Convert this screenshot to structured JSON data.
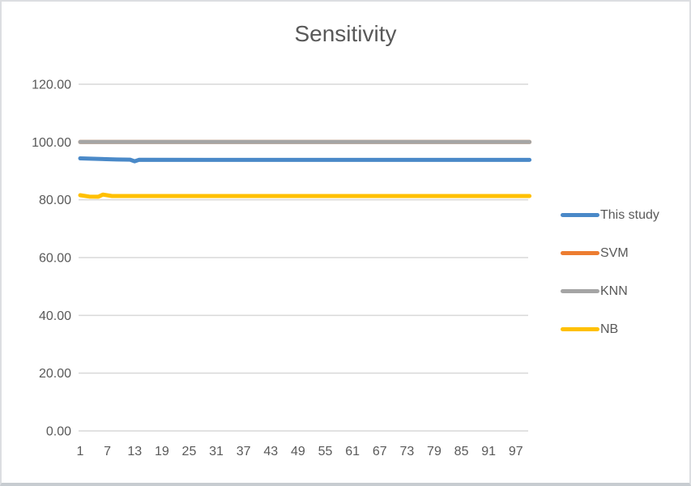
{
  "frame": {
    "background": "#ffffff",
    "border_color": "#dcdee1",
    "border_bottom_color": "#c7ccd1"
  },
  "chart_data": {
    "type": "line",
    "title": "Sensitivity",
    "styles": {
      "title_color": "#595959",
      "axis_label_color": "#595959",
      "gridline_color": "#d9d9d9",
      "legend_text_color": "#595959"
    },
    "grid": true,
    "legend_position": "right",
    "x_axis": {
      "range": [
        1,
        100
      ],
      "tick_start": 1,
      "tick_step": 6,
      "tick_labels": [
        "1",
        "7",
        "13",
        "19",
        "25",
        "31",
        "37",
        "43",
        "49",
        "55",
        "61",
        "67",
        "73",
        "79",
        "85",
        "91",
        "97"
      ]
    },
    "y_axis": {
      "min": 0,
      "max": 120,
      "step": 20,
      "tick_labels": [
        "0.00",
        "20.00",
        "40.00",
        "60.00",
        "80.00",
        "100.00",
        "120.00"
      ]
    },
    "series": [
      {
        "name": "This study",
        "color": "#4a89c8",
        "approx_value": 93.8,
        "points": [
          [
            1,
            94.35
          ],
          [
            9,
            93.95
          ],
          [
            12,
            93.9
          ],
          [
            13,
            93.35
          ],
          [
            14,
            93.85
          ],
          [
            100,
            93.8
          ]
        ]
      },
      {
        "name": "SVM",
        "color": "#ed7d31",
        "approx_value": 100.0,
        "points": [
          [
            1,
            100
          ],
          [
            100,
            100
          ]
        ]
      },
      {
        "name": "KNN",
        "color": "#a5a5a5",
        "approx_value": 100.0,
        "points": [
          [
            1,
            100
          ],
          [
            100,
            100
          ]
        ]
      },
      {
        "name": "NB",
        "color": "#ffc000",
        "approx_value": 81.3,
        "points": [
          [
            1,
            81.6
          ],
          [
            3,
            81.1
          ],
          [
            5,
            81.05
          ],
          [
            6,
            81.8
          ],
          [
            8,
            81.3
          ],
          [
            100,
            81.3
          ]
        ]
      }
    ]
  }
}
